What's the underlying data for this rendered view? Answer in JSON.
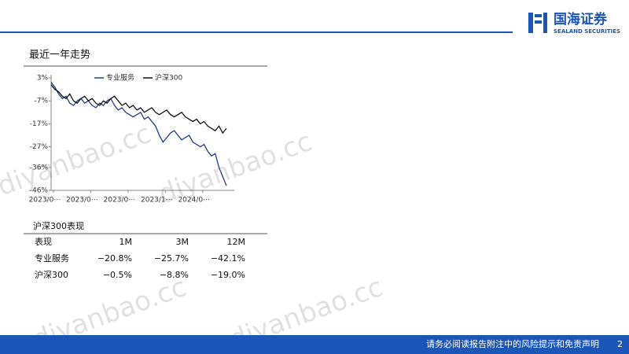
{
  "header": {
    "logo_cn": "国海证券",
    "logo_en": "SEALAND SECURITIES"
  },
  "section_title": "最近一年走势",
  "chart_data": {
    "type": "line",
    "categories": [
      "2023/0⋯",
      null,
      null,
      null,
      null,
      null,
      null,
      null,
      null,
      null,
      "2023/0⋯",
      null,
      null,
      null,
      null,
      null,
      null,
      null,
      null,
      null,
      "2023/0⋯",
      null,
      null,
      null,
      null,
      null,
      null,
      null,
      null,
      null,
      "2023/1⋯",
      null,
      null,
      null,
      null,
      null,
      null,
      null,
      null,
      null,
      "2024/0⋯",
      null,
      null,
      null,
      null,
      null,
      null,
      null
    ],
    "series": [
      {
        "name": "专业服务",
        "color": "#1f3d8a",
        "values": [
          1,
          -1,
          -4,
          -6,
          -5,
          -8,
          -9,
          -7,
          -6,
          -8,
          -7,
          -9,
          -10,
          -8,
          -9,
          -7,
          -6,
          -9,
          -11,
          -10,
          -12,
          -13,
          -14,
          -13,
          -12,
          -15,
          -14,
          -16,
          -18,
          -22,
          -25,
          -23,
          -21,
          -20,
          -22,
          -24,
          -23,
          -22,
          -25,
          -26,
          -27,
          -26,
          -29,
          -31,
          -30,
          -36,
          -40,
          -44
        ]
      },
      {
        "name": "沪深300",
        "color": "#111111",
        "values": [
          0,
          -2,
          -3,
          -5,
          -6,
          -4,
          -7,
          -8,
          -6,
          -5,
          -7,
          -6,
          -8,
          -9,
          -7,
          -8,
          -6,
          -5,
          -7,
          -9,
          -8,
          -10,
          -9,
          -11,
          -10,
          -12,
          -11,
          -10,
          -12,
          -13,
          -12,
          -11,
          -13,
          -14,
          -13,
          -12,
          -14,
          -15,
          -16,
          -15,
          -17,
          -16,
          -18,
          -19,
          -20,
          -18,
          -21,
          -19
        ]
      }
    ],
    "ylim": [
      -46,
      3
    ],
    "yticks": [
      {
        "value": 3,
        "label": "3%"
      },
      {
        "value": -7,
        "label": "-7%"
      },
      {
        "value": -17,
        "label": "-17%"
      },
      {
        "value": -27,
        "label": "-27%"
      },
      {
        "value": -36,
        "label": "-36%"
      },
      {
        "value": -46,
        "label": "-46%"
      }
    ]
  },
  "table": {
    "title": "沪深300表现",
    "header": [
      "表现",
      "1M",
      "3M",
      "12M"
    ],
    "rows": [
      [
        "专业服务",
        "−20.8%",
        "−25.7%",
        "−42.1%"
      ],
      [
        "沪深300",
        "−0.5%",
        "−8.8%",
        "−19.0%"
      ]
    ]
  },
  "watermark": "diyanbao.cc",
  "footer": {
    "disclaimer": "请务必阅读报告附注中的风险提示和免责声明",
    "page": "2"
  }
}
